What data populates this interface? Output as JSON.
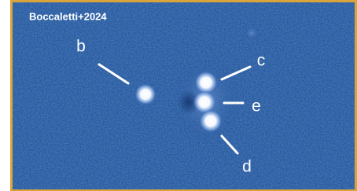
{
  "image": {
    "credit": "Boccaletti+2024",
    "labels": [
      "b",
      "c",
      "e",
      "d"
    ]
  }
}
